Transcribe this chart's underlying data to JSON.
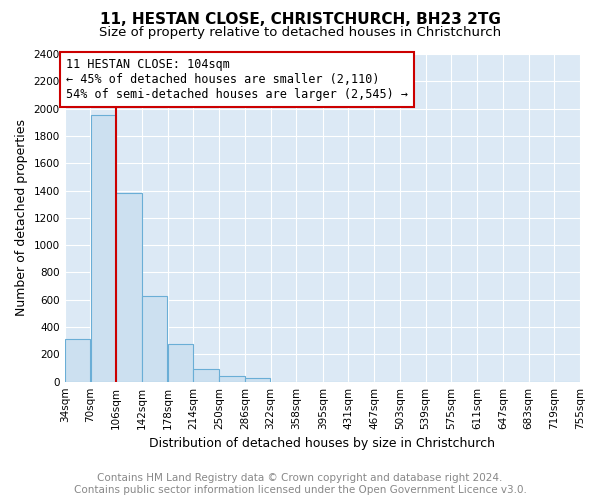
{
  "title": "11, HESTAN CLOSE, CHRISTCHURCH, BH23 2TG",
  "subtitle": "Size of property relative to detached houses in Christchurch",
  "xlabel": "Distribution of detached houses by size in Christchurch",
  "ylabel": "Number of detached properties",
  "bin_edges": [
    34,
    70,
    106,
    142,
    178,
    214,
    250,
    286,
    322,
    358,
    395,
    431,
    467,
    503,
    539,
    575,
    611,
    647,
    683,
    719,
    755
  ],
  "bin_labels": [
    "34sqm",
    "70sqm",
    "106sqm",
    "142sqm",
    "178sqm",
    "214sqm",
    "250sqm",
    "286sqm",
    "322sqm",
    "358sqm",
    "395sqm",
    "431sqm",
    "467sqm",
    "503sqm",
    "539sqm",
    "575sqm",
    "611sqm",
    "647sqm",
    "683sqm",
    "719sqm",
    "755sqm"
  ],
  "bar_heights": [
    315,
    1950,
    1380,
    630,
    275,
    95,
    42,
    25,
    0,
    0,
    0,
    0,
    0,
    0,
    0,
    0,
    0,
    0,
    0,
    0
  ],
  "bar_color": "#cce0f0",
  "bar_edge_color": "#6aaed6",
  "red_line_x": 106,
  "annotation_title": "11 HESTAN CLOSE: 104sqm",
  "annotation_line1": "← 45% of detached houses are smaller (2,110)",
  "annotation_line2": "54% of semi-detached houses are larger (2,545) →",
  "annotation_box_color": "#ffffff",
  "annotation_box_edge": "#cc0000",
  "red_line_color": "#cc0000",
  "ylim": [
    0,
    2400
  ],
  "yticks": [
    0,
    200,
    400,
    600,
    800,
    1000,
    1200,
    1400,
    1600,
    1800,
    2000,
    2200,
    2400
  ],
  "footer_line1": "Contains HM Land Registry data © Crown copyright and database right 2024.",
  "footer_line2": "Contains public sector information licensed under the Open Government Licence v3.0.",
  "background_color": "#ffffff",
  "plot_background_color": "#dce9f5",
  "grid_color": "#ffffff",
  "title_fontsize": 11,
  "subtitle_fontsize": 9.5,
  "axis_label_fontsize": 9,
  "tick_fontsize": 7.5,
  "footer_fontsize": 7.5
}
